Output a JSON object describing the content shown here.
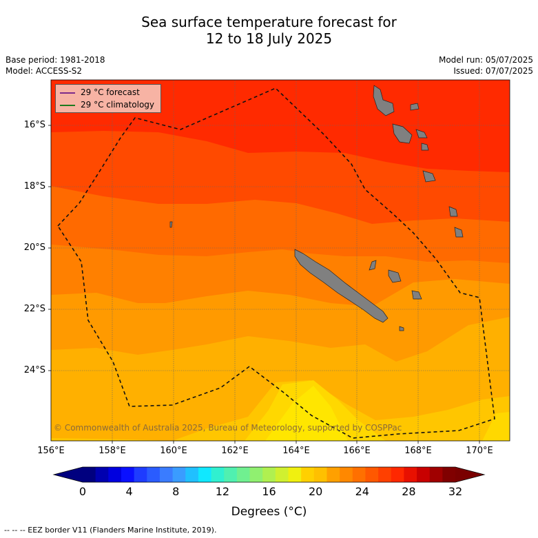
{
  "title_line1": "Sea surface temperature forecast for",
  "title_line2": "12 to 18 July 2025",
  "base_period": "Base period: 1981-2018",
  "model": "Model: ACCESS-S2",
  "model_run": "Model run: 05/07/2025",
  "issued": "Issued: 07/07/2025",
  "legend": {
    "forecast_label": "29 °C  forecast",
    "forecast_color": "#7b2a8a",
    "climatology_label": "29 °C  climatology",
    "climatology_color": "#1d7a1d"
  },
  "copyright": "© Commonwealth of Australia 2025, Bureau of Meteorology, supported by COSPPac",
  "lat_labels": [
    "16°S",
    "18°S",
    "20°S",
    "22°S",
    "24°S"
  ],
  "lon_labels": [
    "156°E",
    "158°E",
    "160°E",
    "162°E",
    "164°E",
    "166°E",
    "168°E",
    "170°E"
  ],
  "colorbar": {
    "ticks": [
      "0",
      "4",
      "8",
      "12",
      "16",
      "20",
      "24",
      "28",
      "32"
    ],
    "title": "Degrees (°C)",
    "colors": [
      "#00007f",
      "#0000b0",
      "#0000df",
      "#0a10ff",
      "#1e3cff",
      "#2a5cff",
      "#3a7cff",
      "#3a9cff",
      "#20c0ff",
      "#10e8ff",
      "#30f0d0",
      "#50f0b0",
      "#70f090",
      "#90f070",
      "#b0f050",
      "#d0f030",
      "#f0f010",
      "#ffd000",
      "#ffc000",
      "#ffa000",
      "#ff8800",
      "#ff7000",
      "#ff5800",
      "#ff4000",
      "#ff2800",
      "#e81000",
      "#c80000",
      "#a00000",
      "#800000"
    ],
    "low_color": "#00007f",
    "high_color": "#7a0000"
  },
  "map_colors": [
    "#ff2a00",
    "#ff4a00",
    "#ff6a00",
    "#ff8000",
    "#ff9a00",
    "#ffb000",
    "#ffc600",
    "#ffd800",
    "#ffe600"
  ],
  "land_color": "#808080",
  "footnote": "--  --  -- EEZ border V11 (Flanders Marine Institute, 2019)."
}
